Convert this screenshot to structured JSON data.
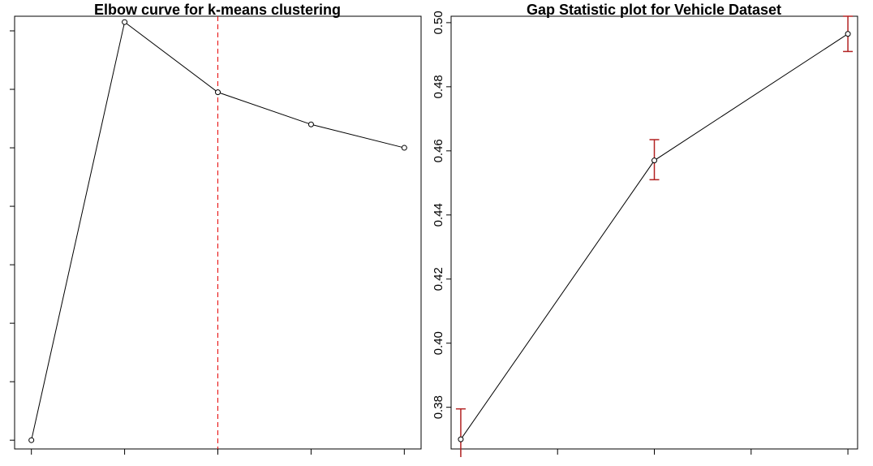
{
  "chart_data": [
    {
      "type": "line",
      "title": "Elbow curve for k-means clustering",
      "xlabel": "",
      "ylabel": "",
      "x": [
        1,
        2,
        3,
        4,
        5
      ],
      "xlim": [
        0.82,
        5.18
      ],
      "ylim": [
        0.357,
        0.505
      ],
      "yticks": [
        0.36,
        0.38,
        0.4,
        0.42,
        0.44,
        0.46,
        0.48,
        0.5
      ],
      "series": [
        {
          "values": [
            0.36,
            0.503,
            0.479,
            0.468,
            0.46
          ]
        }
      ],
      "reference_line": {
        "x": 3,
        "style": "dashed",
        "color": "#e60000"
      },
      "grid": false
    },
    {
      "type": "line",
      "title": "Gap Statistic plot for Vehicle Dataset",
      "xlabel": "",
      "ylabel": "",
      "x": [
        1,
        2,
        3,
        4,
        5
      ],
      "xlim": [
        0.9,
        5.1
      ],
      "ylim": [
        0.367,
        0.502
      ],
      "yticks": [
        "0.38",
        "0.40",
        "0.42",
        "0.44",
        "0.46",
        "0.48",
        "0.50"
      ],
      "series": [
        {
          "x": [
            1,
            3,
            5
          ],
          "values": [
            0.37,
            0.457,
            0.4965
          ]
        }
      ],
      "error_bars": [
        {
          "x": 1,
          "low": 0.36,
          "high": 0.3795
        },
        {
          "x": 3,
          "low": 0.451,
          "high": 0.4635
        },
        {
          "x": 5,
          "low": 0.491,
          "high": 0.502
        }
      ],
      "error_bar_color": "#b22222",
      "grid": false
    }
  ]
}
